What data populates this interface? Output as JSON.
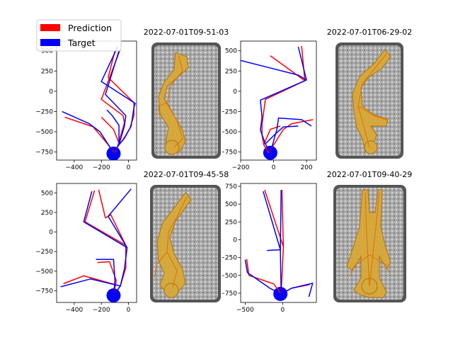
{
  "legend": {
    "entries": [
      {
        "label": "Prediction",
        "color": "#ff0000"
      },
      {
        "label": "Target",
        "color": "#0000ff"
      }
    ]
  },
  "colors": {
    "prediction": "#ff0000",
    "target": "#0000ff",
    "axes": "#000000"
  },
  "image_titles": [
    "2022-07-01T09-51-03",
    "2022-07-01T06-29-02",
    "2022-07-01T09-45-58",
    "2022-07-01T09-40-29"
  ],
  "chart_data": [
    {
      "type": "line",
      "xlim": [
        -530,
        60
      ],
      "ylim": [
        -850,
        620
      ],
      "xticks": [
        -400,
        -200,
        0
      ],
      "yticks": [
        -750,
        -500,
        -250,
        0,
        250,
        500
      ],
      "series": [
        {
          "name": "Prediction",
          "color": "#ff0000",
          "segments": [
            [
              [
                -100,
                -760
              ],
              [
                -80,
                -680
              ],
              [
                -40,
                -600
              ],
              [
                10,
                -460
              ],
              [
                40,
                -300
              ],
              [
                40,
                -140
              ],
              [
                -150,
                170
              ],
              [
                -100,
                500
              ]
            ],
            [
              [
                -80,
                -680
              ],
              [
                -30,
                -390
              ],
              [
                -40,
                -300
              ],
              [
                -200,
                -100
              ],
              [
                -60,
                520
              ]
            ],
            [
              [
                -100,
                -760
              ],
              [
                -260,
                -440
              ],
              [
                -470,
                -320
              ]
            ],
            [
              [
                -70,
                -640
              ],
              [
                -110,
                -470
              ],
              [
                -200,
                -320
              ]
            ]
          ]
        },
        {
          "name": "Target",
          "color": "#0000ff",
          "segments": [
            [
              [
                -110,
                -760
              ],
              [
                -70,
                -660
              ],
              [
                -30,
                -580
              ],
              [
                20,
                -430
              ],
              [
                40,
                -200
              ],
              [
                50,
                -150
              ],
              [
                -200,
                120
              ],
              [
                -80,
                550
              ]
            ],
            [
              [
                -70,
                -660
              ],
              [
                -30,
                -430
              ],
              [
                -20,
                -300
              ],
              [
                -170,
                -40
              ],
              [
                -70,
                500
              ]
            ],
            [
              [
                -110,
                -760
              ],
              [
                -210,
                -500
              ],
              [
                -290,
                -400
              ],
              [
                -490,
                -250
              ]
            ],
            [
              [
                -70,
                -640
              ],
              [
                -70,
                -420
              ],
              [
                -120,
                -300
              ],
              [
                -160,
                -230
              ]
            ]
          ]
        },
        {
          "name": "Target joint",
          "color": "#0000ff",
          "points": [
            {
              "x": -110,
              "y": -770
            }
          ]
        }
      ]
    },
    {
      "type": "line",
      "xlim": [
        -200,
        260
      ],
      "ylim": [
        -850,
        620
      ],
      "xticks": [
        -200,
        0,
        200
      ],
      "yticks": [
        -750,
        -500,
        -250,
        0,
        250,
        500
      ],
      "series": [
        {
          "name": "Prediction",
          "color": "#ff0000",
          "segments": [
            [
              [
                -30,
                -760
              ],
              [
                -60,
                -660
              ],
              [
                -70,
                -540
              ],
              [
                -70,
                -410
              ],
              [
                -50,
                -100
              ],
              [
                190,
                130
              ],
              [
                170,
                560
              ]
            ],
            [
              [
                -30,
                -760
              ],
              [
                60,
                -470
              ],
              [
                110,
                -400
              ],
              [
                240,
                -350
              ]
            ],
            [
              [
                -60,
                -660
              ],
              [
                -20,
                -470
              ],
              [
                40,
                -430
              ]
            ],
            [
              [
                190,
                130
              ],
              [
                -20,
                440
              ]
            ]
          ]
        },
        {
          "name": "Target",
          "color": "#0000ff",
          "segments": [
            [
              [
                -20,
                -760
              ],
              [
                -50,
                -650
              ],
              [
                -80,
                -480
              ],
              [
                -70,
                -320
              ],
              [
                -80,
                -110
              ],
              [
                200,
                140
              ],
              [
                150,
                550
              ]
            ],
            [
              [
                -20,
                -760
              ],
              [
                20,
                -470
              ],
              [
                30,
                -330
              ],
              [
                170,
                -350
              ],
              [
                230,
                -430
              ]
            ],
            [
              [
                -50,
                -650
              ],
              [
                10,
                -530
              ],
              [
                60,
                -440
              ],
              [
                150,
                -430
              ]
            ],
            [
              [
                200,
                140
              ],
              [
                150,
                200
              ],
              [
                -200,
                380
              ]
            ]
          ]
        },
        {
          "name": "Target joint",
          "color": "#0000ff",
          "points": [
            {
              "x": -20,
              "y": -760
            }
          ]
        }
      ]
    },
    {
      "type": "line",
      "xlim": [
        -530,
        60
      ],
      "ylim": [
        -900,
        620
      ],
      "xticks": [
        -400,
        -200,
        0
      ],
      "yticks": [
        -750,
        -500,
        -250,
        0,
        250,
        500
      ],
      "series": [
        {
          "name": "Prediction",
          "color": "#ff0000",
          "segments": [
            [
              [
                -110,
                -810
              ],
              [
                -60,
                -690
              ],
              [
                -20,
                -460
              ],
              [
                -20,
                -170
              ],
              [
                -130,
                220
              ],
              [
                -170,
                180
              ],
              [
                -220,
                540
              ]
            ],
            [
              [
                -60,
                -690
              ],
              [
                -330,
                -560
              ],
              [
                -480,
                -660
              ]
            ],
            [
              [
                -110,
                -810
              ],
              [
                -90,
                -620
              ],
              [
                -140,
                -380
              ],
              [
                -230,
                -390
              ]
            ],
            [
              [
                -20,
                -170
              ],
              [
                -320,
                130
              ],
              [
                -250,
                530
              ]
            ]
          ]
        },
        {
          "name": "Target",
          "color": "#0000ff",
          "segments": [
            [
              [
                -110,
                -810
              ],
              [
                -60,
                -690
              ],
              [
                -30,
                -470
              ],
              [
                -10,
                -200
              ],
              [
                -150,
                200
              ],
              [
                20,
                550
              ]
            ],
            [
              [
                -60,
                -690
              ],
              [
                -280,
                -600
              ],
              [
                -500,
                -700
              ]
            ],
            [
              [
                -110,
                -810
              ],
              [
                -100,
                -620
              ],
              [
                -110,
                -350
              ],
              [
                -240,
                -350
              ]
            ],
            [
              [
                -10,
                -200
              ],
              [
                -330,
                130
              ],
              [
                -270,
                520
              ]
            ]
          ]
        },
        {
          "name": "Target joint",
          "color": "#0000ff",
          "points": [
            {
              "x": -110,
              "y": -810
            }
          ]
        }
      ]
    },
    {
      "type": "line",
      "xlim": [
        -560,
        450
      ],
      "ylim": [
        -880,
        790
      ],
      "xticks": [
        -500,
        0
      ],
      "yticks": [
        -750,
        -500,
        -250,
        0,
        250,
        500,
        750
      ],
      "series": [
        {
          "name": "Prediction",
          "color": "#ff0000",
          "segments": [
            [
              [
                -20,
                -760
              ],
              [
                -120,
                -620
              ],
              [
                -450,
                -500
              ],
              [
                -480,
                -270
              ]
            ],
            [
              [
                -20,
                -760
              ],
              [
                120,
                -680
              ],
              [
                360,
                -630
              ]
            ],
            [
              [
                -20,
                -760
              ],
              [
                10,
                -100
              ],
              [
                -240,
                700
              ]
            ],
            [
              [
                10,
                -100
              ],
              [
                -10,
                700
              ]
            ]
          ]
        },
        {
          "name": "Target",
          "color": "#0000ff",
          "segments": [
            [
              [
                -20,
                -760
              ],
              [
                -170,
                -680
              ],
              [
                -470,
                -460
              ],
              [
                -500,
                -280
              ]
            ],
            [
              [
                -20,
                -760
              ],
              [
                120,
                -680
              ],
              [
                400,
                -610
              ],
              [
                350,
                -800
              ]
            ],
            [
              [
                -20,
                -760
              ],
              [
                -30,
                -140
              ],
              [
                -260,
                680
              ]
            ],
            [
              [
                -30,
                -140
              ],
              [
                -210,
                -150
              ]
            ],
            [
              [
                -30,
                -140
              ],
              [
                -20,
                700
              ]
            ]
          ]
        },
        {
          "name": "Target joint",
          "color": "#0000ff",
          "points": [
            {
              "x": -30,
              "y": -760
            }
          ]
        }
      ]
    }
  ]
}
